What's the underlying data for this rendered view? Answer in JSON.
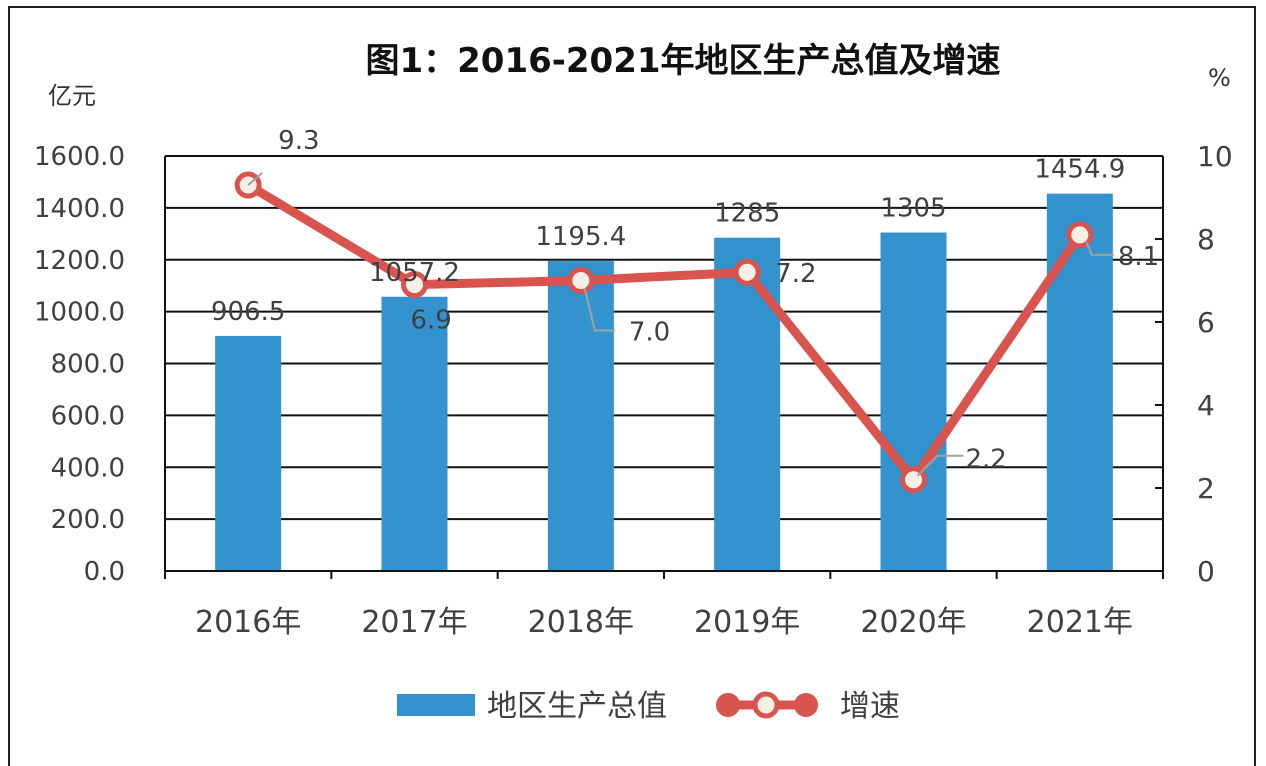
{
  "chart_data": {
    "type": "bar",
    "title": "图1：2016-2021年地区生产总值及增速",
    "y_left_unit": "亿元",
    "y_right_unit": "%",
    "categories": [
      "2016年",
      "2017年",
      "2018年",
      "2019年",
      "2020年",
      "2021年"
    ],
    "series": [
      {
        "name": "地区生产总值",
        "type": "bar",
        "axis": "left",
        "color": "#3393CE",
        "values": [
          906.5,
          1057.2,
          1195.4,
          1285,
          1305,
          1454.9
        ],
        "labels": [
          "906.5",
          "1057.2",
          "1195.4",
          "1285",
          "1305",
          "1454.9"
        ]
      },
      {
        "name": "增速",
        "type": "line",
        "axis": "right",
        "color": "#D9534F",
        "values": [
          9.3,
          6.9,
          7.0,
          7.2,
          2.2,
          8.1
        ],
        "labels": [
          "9.3",
          "6.9",
          "7.0",
          "7.2",
          "2.2",
          "8.1"
        ]
      }
    ],
    "y_left": {
      "min": 0,
      "max": 1600,
      "step": 200,
      "tick_labels": [
        "0.0",
        "200.0",
        "400.0",
        "600.0",
        "800.0",
        "1000.0",
        "1200.0",
        "1400.0",
        "1600.0"
      ]
    },
    "y_right": {
      "min": 0,
      "max": 10,
      "step": 2,
      "tick_labels": [
        "0",
        "2",
        "4",
        "6",
        "8",
        "10"
      ]
    },
    "grid": true,
    "legend_position": "bottom"
  }
}
